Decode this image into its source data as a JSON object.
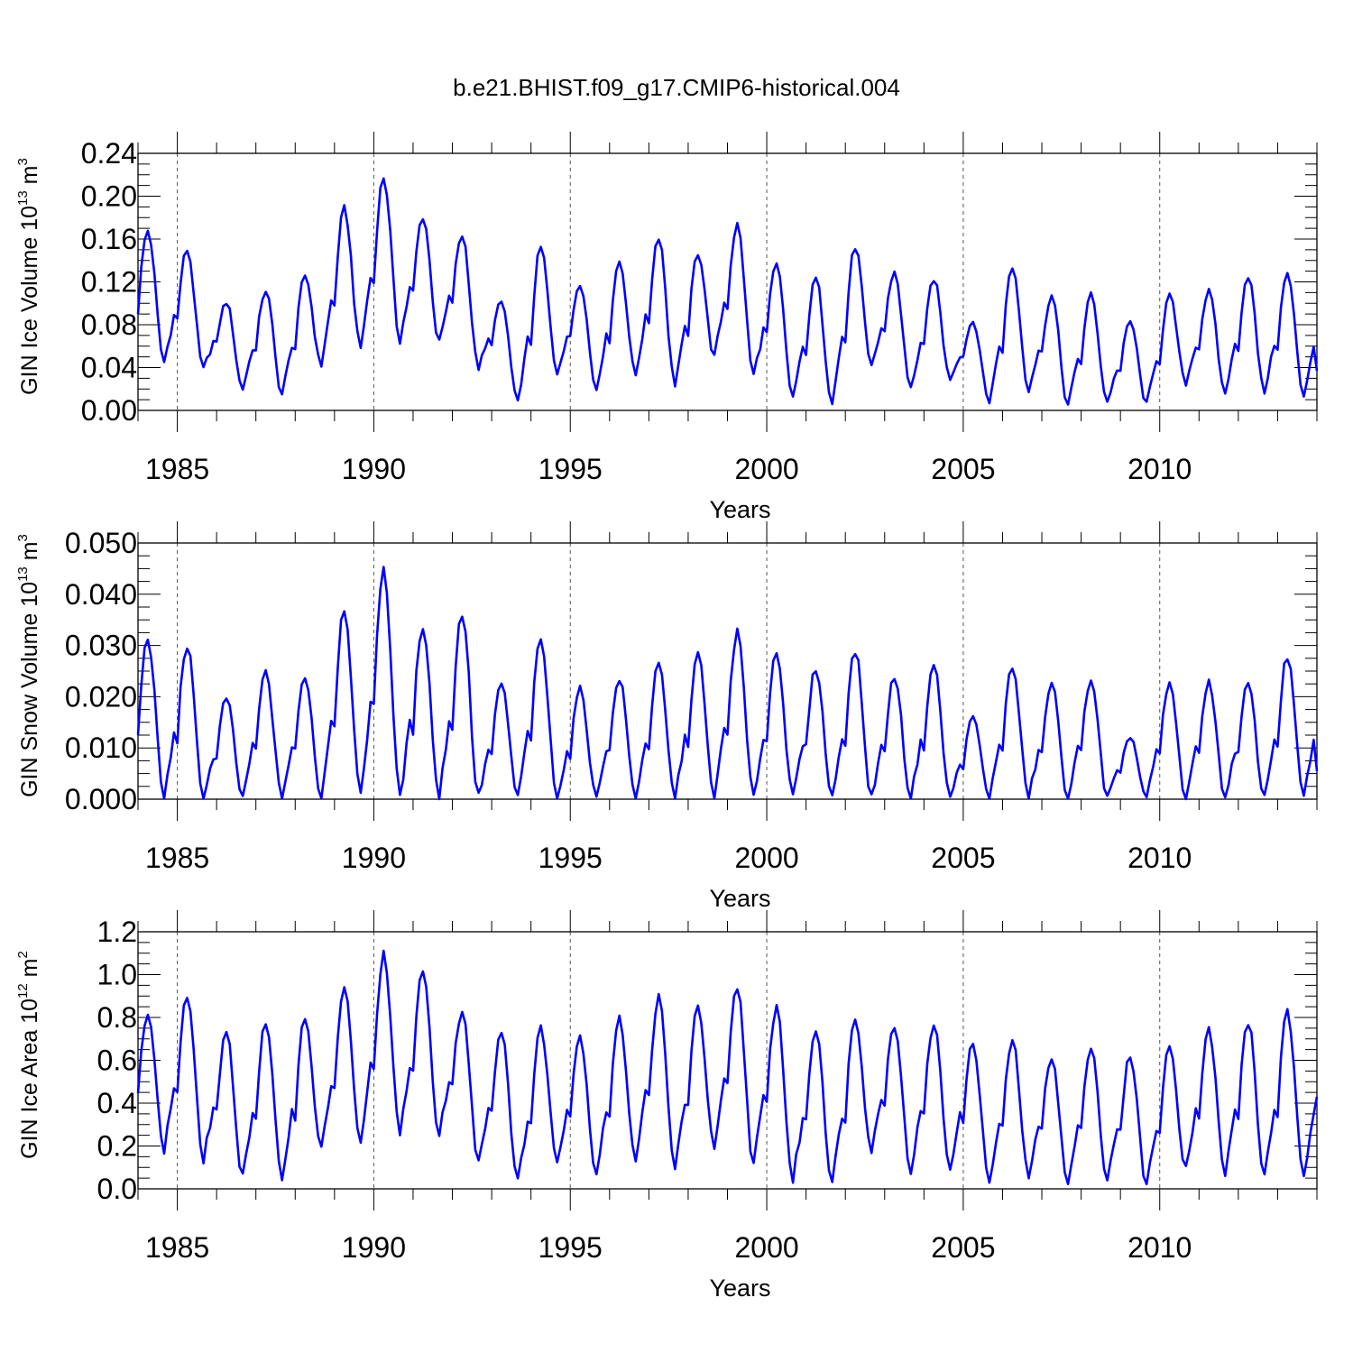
{
  "figure_title": "b.e21.BHIST.f09_g17.CMIP6-historical.004",
  "series_color": "#0000ff",
  "chart_data": [
    {
      "type": "line",
      "title": "",
      "xlabel": "Years",
      "ylabel": {
        "pre": "GIN Ice Volume 10",
        "exp": "13",
        "mid": " m",
        "exp2": "3"
      },
      "xlim": [
        1984.0,
        2014.0
      ],
      "ylim": [
        0.0,
        0.24
      ],
      "yticks": [
        0.0,
        0.04,
        0.08,
        0.12,
        0.16,
        0.2,
        0.24
      ],
      "ytick_labels": [
        "0.00",
        "0.04",
        "0.08",
        "0.12",
        "0.16",
        "0.20",
        "0.24"
      ],
      "xticks": [
        1985,
        1990,
        1995,
        2000,
        2005,
        2010
      ],
      "xtick_labels": [
        "1985",
        "1990",
        "1995",
        "2000",
        "2005",
        "2010"
      ],
      "grid": "dashed vertical lines at labeled years",
      "series": [
        {
          "name": "GIN Ice Volume",
          "annual": [
            {
              "year": 1984,
              "min": 0.045,
              "max": 0.168
            },
            {
              "year": 1985,
              "min": 0.038,
              "max": 0.15
            },
            {
              "year": 1986,
              "min": 0.02,
              "max": 0.101
            },
            {
              "year": 1987,
              "min": 0.015,
              "max": 0.112
            },
            {
              "year": 1988,
              "min": 0.042,
              "max": 0.126
            },
            {
              "year": 1989,
              "min": 0.058,
              "max": 0.188
            },
            {
              "year": 1990,
              "min": 0.066,
              "max": 0.218
            },
            {
              "year": 1991,
              "min": 0.063,
              "max": 0.181
            },
            {
              "year": 1992,
              "min": 0.04,
              "max": 0.164
            },
            {
              "year": 1993,
              "min": 0.007,
              "max": 0.101
            },
            {
              "year": 1994,
              "min": 0.035,
              "max": 0.152
            },
            {
              "year": 1995,
              "min": 0.02,
              "max": 0.119
            },
            {
              "year": 1996,
              "min": 0.033,
              "max": 0.139
            },
            {
              "year": 1997,
              "min": 0.025,
              "max": 0.163
            },
            {
              "year": 1998,
              "min": 0.05,
              "max": 0.147
            },
            {
              "year": 1999,
              "min": 0.033,
              "max": 0.173
            },
            {
              "year": 2000,
              "min": 0.012,
              "max": 0.135
            },
            {
              "year": 2001,
              "min": 0.009,
              "max": 0.123
            },
            {
              "year": 2002,
              "min": 0.04,
              "max": 0.153
            },
            {
              "year": 2003,
              "min": 0.02,
              "max": 0.129
            },
            {
              "year": 2004,
              "min": 0.03,
              "max": 0.123
            },
            {
              "year": 2005,
              "min": 0.008,
              "max": 0.083
            },
            {
              "year": 2006,
              "min": 0.02,
              "max": 0.134
            },
            {
              "year": 2007,
              "min": 0.005,
              "max": 0.107
            },
            {
              "year": 2008,
              "min": 0.008,
              "max": 0.108
            },
            {
              "year": 2009,
              "min": 0.006,
              "max": 0.083
            },
            {
              "year": 2010,
              "min": 0.025,
              "max": 0.107
            },
            {
              "year": 2011,
              "min": 0.016,
              "max": 0.111
            },
            {
              "year": 2012,
              "min": 0.017,
              "max": 0.126
            },
            {
              "year": 2013,
              "min": 0.014,
              "max": 0.127
            }
          ],
          "final_value": 0.037
        }
      ]
    },
    {
      "type": "line",
      "title": "",
      "xlabel": "Years",
      "ylabel": {
        "pre": "GIN Snow Volume 10",
        "exp": "13",
        "mid": " m",
        "exp2": "3"
      },
      "xlim": [
        1984.0,
        2014.0
      ],
      "ylim": [
        0.0,
        0.05
      ],
      "yticks": [
        0.0,
        0.01,
        0.02,
        0.03,
        0.04,
        0.05
      ],
      "ytick_labels": [
        "0.000",
        "0.010",
        "0.020",
        "0.030",
        "0.040",
        "0.050"
      ],
      "xticks": [
        1985,
        1990,
        1995,
        2000,
        2005,
        2010
      ],
      "xtick_labels": [
        "1985",
        "1990",
        "1995",
        "2000",
        "2005",
        "2010"
      ],
      "grid": "dashed vertical lines at labeled years",
      "series": [
        {
          "name": "GIN Snow Volume",
          "annual": [
            {
              "year": 1984,
              "min": 0.0002,
              "max": 0.0315
            },
            {
              "year": 1985,
              "min": 0.0003,
              "max": 0.03
            },
            {
              "year": 1986,
              "min": 0.0003,
              "max": 0.0198
            },
            {
              "year": 1987,
              "min": 0.0003,
              "max": 0.0248
            },
            {
              "year": 1988,
              "min": 0.0003,
              "max": 0.024
            },
            {
              "year": 1989,
              "min": 0.0003,
              "max": 0.0375
            },
            {
              "year": 1990,
              "min": 0.0005,
              "max": 0.0453
            },
            {
              "year": 1991,
              "min": 0.0005,
              "max": 0.034
            },
            {
              "year": 1992,
              "min": 0.0003,
              "max": 0.0365
            },
            {
              "year": 1993,
              "min": 0.0003,
              "max": 0.0225
            },
            {
              "year": 1994,
              "min": 0.0003,
              "max": 0.031
            },
            {
              "year": 1995,
              "min": 0.0003,
              "max": 0.0215
            },
            {
              "year": 1996,
              "min": 0.0003,
              "max": 0.0235
            },
            {
              "year": 1997,
              "min": 0.0003,
              "max": 0.0262
            },
            {
              "year": 1998,
              "min": 0.0003,
              "max": 0.0282
            },
            {
              "year": 1999,
              "min": 0.0003,
              "max": 0.0325
            },
            {
              "year": 2000,
              "min": 0.0003,
              "max": 0.029
            },
            {
              "year": 2001,
              "min": 0.0003,
              "max": 0.0256
            },
            {
              "year": 2002,
              "min": 0.0003,
              "max": 0.029
            },
            {
              "year": 2003,
              "min": 0.0003,
              "max": 0.024
            },
            {
              "year": 2004,
              "min": 0.0003,
              "max": 0.0262
            },
            {
              "year": 2005,
              "min": 0.0003,
              "max": 0.016
            },
            {
              "year": 2006,
              "min": 0.0003,
              "max": 0.0258
            },
            {
              "year": 2007,
              "min": 0.0003,
              "max": 0.0225
            },
            {
              "year": 2008,
              "min": 0.0003,
              "max": 0.0235
            },
            {
              "year": 2009,
              "min": 0.0003,
              "max": 0.0122
            },
            {
              "year": 2010,
              "min": 0.0003,
              "max": 0.0225
            },
            {
              "year": 2011,
              "min": 0.0003,
              "max": 0.023
            },
            {
              "year": 2012,
              "min": 0.0003,
              "max": 0.0225
            },
            {
              "year": 2013,
              "min": 0.0003,
              "max": 0.0278
            }
          ],
          "final_value": 0.0055
        }
      ]
    },
    {
      "type": "line",
      "title": "",
      "xlabel": "Years",
      "ylabel": {
        "pre": "GIN Ice Area 10",
        "exp": "12",
        "mid": " m",
        "exp2": "2"
      },
      "xlim": [
        1984.0,
        2014.0
      ],
      "ylim": [
        0.0,
        1.2
      ],
      "yticks": [
        0.0,
        0.2,
        0.4,
        0.6,
        0.8,
        1.0,
        1.2
      ],
      "ytick_labels": [
        "0.0",
        "0.2",
        "0.4",
        "0.6",
        "0.8",
        "1.0",
        "1.2"
      ],
      "xticks": [
        1985,
        1990,
        1995,
        2000,
        2005,
        2010
      ],
      "xtick_labels": [
        "1985",
        "1990",
        "1995",
        "2000",
        "2005",
        "2010"
      ],
      "grid": "dashed vertical lines at labeled years",
      "series": [
        {
          "name": "GIN Ice Area",
          "annual": [
            {
              "year": 1984,
              "min": 0.18,
              "max": 0.83
            },
            {
              "year": 1985,
              "min": 0.14,
              "max": 0.9
            },
            {
              "year": 1986,
              "min": 0.06,
              "max": 0.72
            },
            {
              "year": 1987,
              "min": 0.05,
              "max": 0.77
            },
            {
              "year": 1988,
              "min": 0.18,
              "max": 0.8
            },
            {
              "year": 1989,
              "min": 0.21,
              "max": 0.93
            },
            {
              "year": 1990,
              "min": 0.26,
              "max": 1.09
            },
            {
              "year": 1991,
              "min": 0.26,
              "max": 1.01
            },
            {
              "year": 1992,
              "min": 0.13,
              "max": 0.83
            },
            {
              "year": 1993,
              "min": 0.03,
              "max": 0.74
            },
            {
              "year": 1994,
              "min": 0.13,
              "max": 0.75
            },
            {
              "year": 1995,
              "min": 0.07,
              "max": 0.71
            },
            {
              "year": 1996,
              "min": 0.14,
              "max": 0.79
            },
            {
              "year": 1997,
              "min": 0.1,
              "max": 0.89
            },
            {
              "year": 1998,
              "min": 0.19,
              "max": 0.85
            },
            {
              "year": 1999,
              "min": 0.12,
              "max": 0.94
            },
            {
              "year": 2000,
              "min": 0.04,
              "max": 0.85
            },
            {
              "year": 2001,
              "min": 0.03,
              "max": 0.75
            },
            {
              "year": 2002,
              "min": 0.18,
              "max": 0.8
            },
            {
              "year": 2003,
              "min": 0.08,
              "max": 0.77
            },
            {
              "year": 2004,
              "min": 0.1,
              "max": 0.77
            },
            {
              "year": 2005,
              "min": 0.03,
              "max": 0.68
            },
            {
              "year": 2006,
              "min": 0.06,
              "max": 0.69
            },
            {
              "year": 2007,
              "min": 0.02,
              "max": 0.62
            },
            {
              "year": 2008,
              "min": 0.04,
              "max": 0.67
            },
            {
              "year": 2009,
              "min": 0.02,
              "max": 0.62
            },
            {
              "year": 2010,
              "min": 0.1,
              "max": 0.66
            },
            {
              "year": 2011,
              "min": 0.07,
              "max": 0.74
            },
            {
              "year": 2012,
              "min": 0.06,
              "max": 0.78
            },
            {
              "year": 2013,
              "min": 0.05,
              "max": 0.82
            }
          ],
          "final_value": 0.43
        }
      ]
    }
  ]
}
